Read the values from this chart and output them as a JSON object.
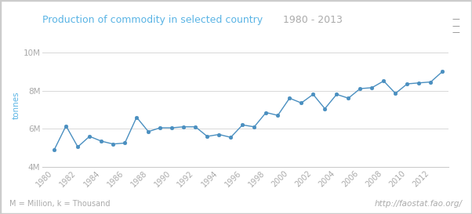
{
  "title": "Production of commodity in selected country",
  "subtitle": "1980 - 2013",
  "ylabel": "tonnes",
  "url_text": "http://faostat.fao.org/",
  "footnote": "M = Million, k = Thousand",
  "title_color": "#5ab4e5",
  "subtitle_color": "#aaaaaa",
  "line_color": "#4a8fc0",
  "marker_color": "#4a8fc0",
  "axis_label_color": "#5ab4e5",
  "tick_label_color": "#aaaaaa",
  "background_color": "#ffffff",
  "grid_color": "#d8d8d8",
  "border_color": "#cccccc",
  "years": [
    1980,
    1981,
    1982,
    1983,
    1984,
    1985,
    1986,
    1987,
    1988,
    1989,
    1990,
    1991,
    1992,
    1993,
    1994,
    1995,
    1996,
    1997,
    1998,
    1999,
    2000,
    2001,
    2002,
    2003,
    2004,
    2005,
    2006,
    2007,
    2008,
    2009,
    2010,
    2011,
    2012,
    2013
  ],
  "values": [
    4900000,
    6150000,
    5050000,
    5600000,
    5350000,
    5200000,
    5250000,
    6600000,
    5850000,
    6050000,
    6050000,
    6100000,
    6100000,
    5600000,
    5700000,
    5550000,
    6200000,
    6100000,
    6850000,
    6700000,
    7600000,
    7350000,
    7800000,
    7050000,
    7800000,
    7600000,
    8100000,
    8150000,
    8500000,
    7850000,
    8350000,
    8400000,
    8450000,
    9000000
  ],
  "ylim": [
    4000000,
    10500000
  ],
  "yticks": [
    4000000,
    6000000,
    8000000,
    10000000
  ],
  "ytick_labels": [
    "4M",
    "6M",
    "8M",
    "10M"
  ],
  "xtick_years": [
    1980,
    1982,
    1984,
    1986,
    1988,
    1990,
    1992,
    1994,
    1996,
    1998,
    2000,
    2002,
    2004,
    2006,
    2008,
    2010,
    2012
  ],
  "figsize": [
    6.02,
    2.73
  ],
  "dpi": 100
}
